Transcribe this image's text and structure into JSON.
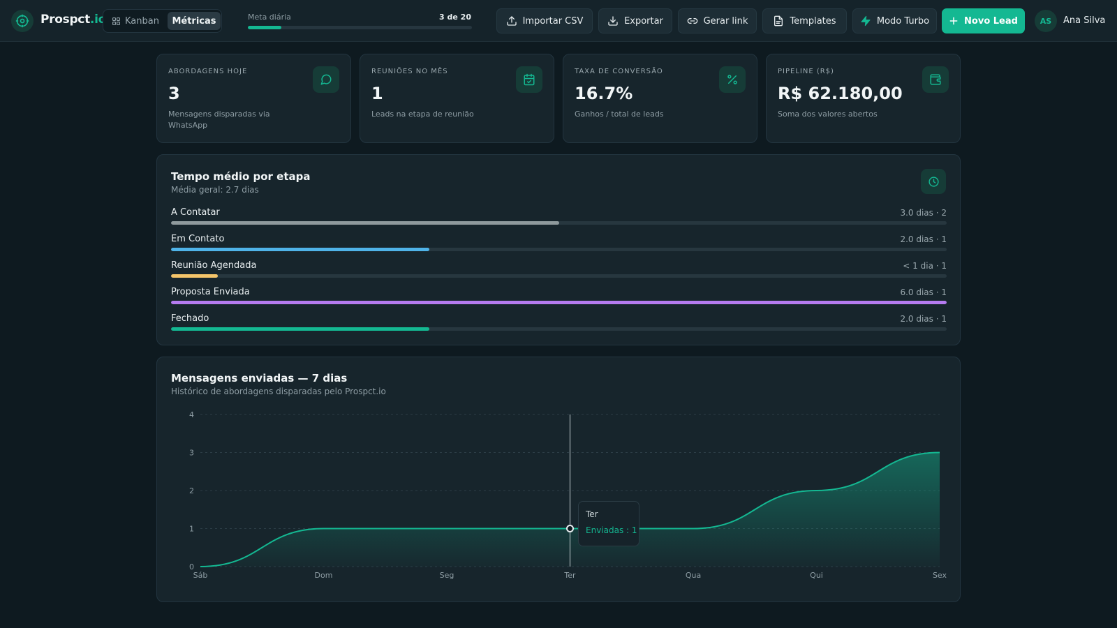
{
  "app": {
    "name_main": "Prospct",
    "name_suffix": ".io"
  },
  "nav": {
    "tabs": [
      {
        "label": "Kanban",
        "active": false
      },
      {
        "label": "Métricas",
        "active": true
      }
    ]
  },
  "goal": {
    "label": "Meta diária",
    "count_text": "3 de 20",
    "progress": 0.15
  },
  "toolbar": {
    "import": "Importar CSV",
    "export": "Exportar",
    "link": "Gerar link",
    "templates": "Templates",
    "turbo": "Modo Turbo",
    "new_lead": "Novo Lead"
  },
  "user": {
    "initials": "AS",
    "name": "Ana Silva"
  },
  "kpis": [
    {
      "label": "ABORDAGENS HOJE",
      "value": "3",
      "sub": "Mensagens disparadas via WhatsApp",
      "icon": "message-circle-icon"
    },
    {
      "label": "REUNIÕES NO MÊS",
      "value": "1",
      "sub": "Leads na etapa de reunião",
      "icon": "calendar-check-icon"
    },
    {
      "label": "TAXA DE CONVERSÃO",
      "value": "16.7%",
      "sub": "Ganhos / total de leads",
      "icon": "percent-icon"
    },
    {
      "label": "PIPELINE (R$)",
      "value": "R$ 62.180,00",
      "sub": "Soma dos valores abertos",
      "icon": "wallet-icon"
    }
  ],
  "stage_times": {
    "title": "Tempo médio por etapa",
    "subtitle": "Média geral: 2.7 dias",
    "rows": [
      {
        "name": "A Contatar",
        "meta": "3.0 dias · 2",
        "fraction": 0.5,
        "color": "#8f9a9d"
      },
      {
        "name": "Em Contato",
        "meta": "2.0 dias · 1",
        "fraction": 0.333,
        "color": "#4fb3e8"
      },
      {
        "name": "Reunião Agendada",
        "meta": "< 1 dia · 1",
        "fraction": 0.06,
        "color": "#f5c56a"
      },
      {
        "name": "Proposta Enviada",
        "meta": "6.0 dias · 1",
        "fraction": 1.0,
        "color": "#b57bf0"
      },
      {
        "name": "Fechado",
        "meta": "2.0 dias · 1",
        "fraction": 0.333,
        "color": "#14b892"
      }
    ]
  },
  "messages_chart": {
    "title": "Mensagens enviadas — 7 dias",
    "subtitle": "Histórico de abordagens disparadas pelo Prospct.io",
    "tooltip": {
      "day": "Ter",
      "text": "Enviadas : 1"
    }
  },
  "chart_data": {
    "type": "area",
    "title": "Mensagens enviadas — 7 dias",
    "categories": [
      "Sáb",
      "Dom",
      "Seg",
      "Ter",
      "Qua",
      "Qui",
      "Sex"
    ],
    "series": [
      {
        "name": "Enviadas",
        "values": [
          0,
          1,
          1,
          1,
          1,
          2,
          3
        ]
      }
    ],
    "ylim": [
      0,
      4
    ],
    "yticks": [
      0,
      1,
      2,
      3,
      4
    ],
    "grid": true,
    "color": "#14b892",
    "highlight_index": 3
  }
}
